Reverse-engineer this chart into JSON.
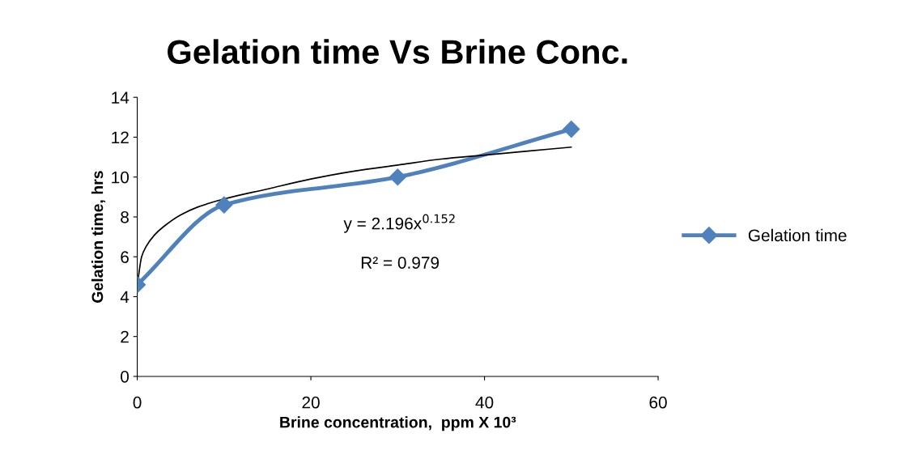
{
  "chart_data": {
    "type": "line",
    "title": "Gelation time Vs Brine Conc.",
    "xlabel": "Brine concentration,  ppm X 10³",
    "ylabel": "Gelation time, hrs",
    "series": [
      {
        "name": "Gelation time",
        "color": "#4f81bd",
        "marker": "diamond",
        "x": [
          0,
          10,
          30,
          50
        ],
        "values": [
          4.6,
          8.6,
          10.0,
          12.4
        ]
      },
      {
        "color": "#000000",
        "marker": "none",
        "x": [
          0.1,
          0.5,
          1,
          2,
          3,
          5,
          7,
          10,
          15,
          20,
          25,
          30,
          35,
          40,
          45,
          50
        ],
        "values": [
          4.9,
          6.0,
          6.5,
          7.1,
          7.5,
          8.1,
          8.5,
          8.9,
          9.4,
          9.9,
          10.3,
          10.6,
          10.9,
          11.1,
          11.3,
          11.5
        ]
      }
    ],
    "annotations": [
      "y = 2.196x$^{0.152}$",
      "R² = 0.979"
    ],
    "xlim": [
      0,
      60
    ],
    "xticks": [
      0,
      20,
      40,
      60
    ],
    "ylim": [
      0,
      14
    ],
    "yticks": [
      0,
      2,
      4,
      6,
      8,
      10,
      12,
      14
    ],
    "grid": false,
    "legend": "right",
    "line_style": "solid"
  }
}
